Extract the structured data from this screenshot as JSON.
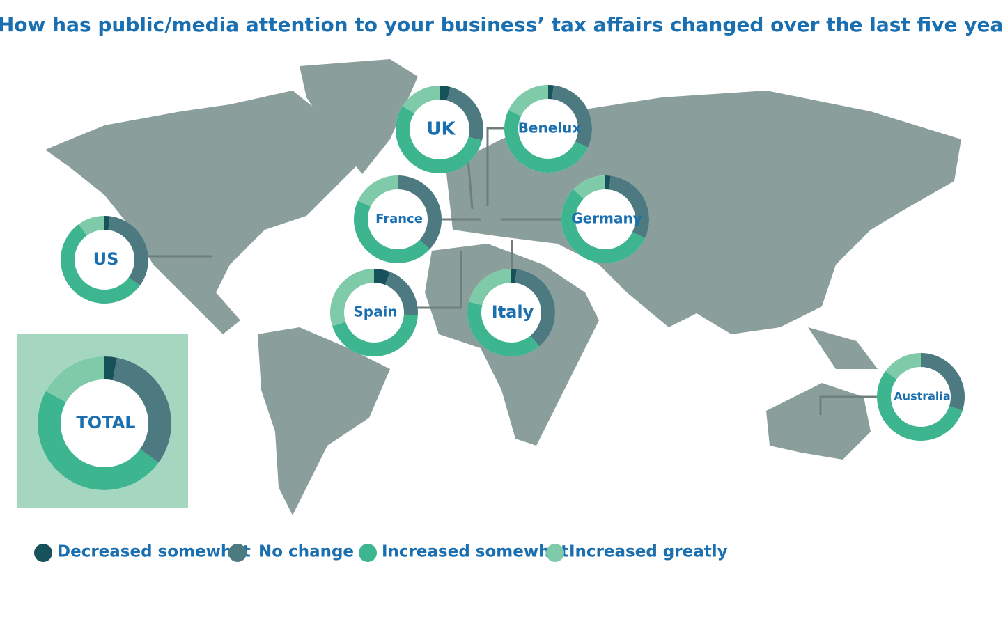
{
  "chart_data": {
    "type": "donut",
    "title": "How has public/media attention to your business’ tax affairs changed over the last five years?",
    "categories": [
      "UK",
      "Benelux",
      "France",
      "Germany",
      "US",
      "Spain",
      "Italy",
      "Australia",
      "TOTAL"
    ],
    "series": [
      {
        "name": "Decreased somewhat",
        "color": "#17525a",
        "values": [
          4,
          2,
          0,
          2,
          2,
          6,
          2,
          0,
          3
        ]
      },
      {
        "name": "No change",
        "color": "#4d7a80",
        "values": [
          25,
          30,
          37,
          30,
          33,
          20,
          37,
          30,
          32
        ]
      },
      {
        "name": "Increased somewhat",
        "color": "#3db58f",
        "values": [
          55,
          50,
          45,
          55,
          55,
          44,
          40,
          55,
          48
        ]
      },
      {
        "name": "Increased greatly",
        "color": "#7fcaa8",
        "values": [
          16,
          18,
          18,
          13,
          10,
          30,
          21,
          15,
          17
        ]
      }
    ]
  }
}
